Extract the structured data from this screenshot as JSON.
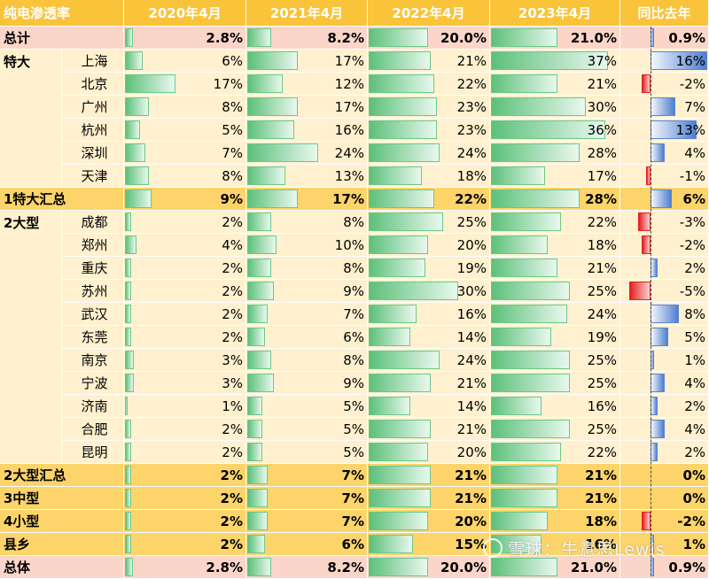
{
  "chart_data": {
    "type": "table",
    "title": "纯电渗透率",
    "columns": [
      "2020年4月",
      "2021年4月",
      "2022年4月",
      "2023年4月",
      "同比去年"
    ],
    "rows": [
      {
        "group": "总计",
        "city": "",
        "style": "total",
        "values": [
          2.8,
          8.2,
          20.0,
          21.0,
          0.9
        ],
        "labels": [
          "2.8%",
          "8.2%",
          "20.0%",
          "21.0%",
          "0.9%"
        ]
      },
      {
        "group": "特大",
        "city": "上海",
        "style": "city",
        "values": [
          6,
          17,
          21,
          37,
          16
        ],
        "labels": [
          "6%",
          "17%",
          "21%",
          "37%",
          "16%"
        ]
      },
      {
        "group": "",
        "city": "北京",
        "style": "city",
        "values": [
          17,
          12,
          22,
          21,
          -2
        ],
        "labels": [
          "17%",
          "12%",
          "22%",
          "21%",
          "-2%"
        ]
      },
      {
        "group": "",
        "city": "广州",
        "style": "city",
        "values": [
          8,
          17,
          23,
          30,
          7
        ],
        "labels": [
          "8%",
          "17%",
          "23%",
          "30%",
          "7%"
        ]
      },
      {
        "group": "",
        "city": "杭州",
        "style": "city",
        "values": [
          5,
          16,
          23,
          36,
          13
        ],
        "labels": [
          "5%",
          "16%",
          "23%",
          "36%",
          "13%"
        ]
      },
      {
        "group": "",
        "city": "深圳",
        "style": "city",
        "values": [
          7,
          24,
          24,
          28,
          4
        ],
        "labels": [
          "7%",
          "24%",
          "24%",
          "28%",
          "4%"
        ]
      },
      {
        "group": "",
        "city": "天津",
        "style": "city",
        "values": [
          8,
          13,
          18,
          17,
          -1
        ],
        "labels": [
          "8%",
          "13%",
          "18%",
          "17%",
          "-1%"
        ]
      },
      {
        "group": "1特大汇总",
        "city": "",
        "style": "summary",
        "values": [
          9,
          17,
          22,
          28,
          6
        ],
        "labels": [
          "9%",
          "17%",
          "22%",
          "28%",
          "6%"
        ]
      },
      {
        "group": "2大型",
        "city": "成都",
        "style": "city",
        "values": [
          2,
          8,
          25,
          22,
          -3
        ],
        "labels": [
          "2%",
          "8%",
          "25%",
          "22%",
          "-3%"
        ]
      },
      {
        "group": "",
        "city": "郑州",
        "style": "city",
        "values": [
          4,
          10,
          20,
          18,
          -2
        ],
        "labels": [
          "4%",
          "10%",
          "20%",
          "18%",
          "-2%"
        ]
      },
      {
        "group": "",
        "city": "重庆",
        "style": "city",
        "values": [
          2,
          8,
          19,
          21,
          2
        ],
        "labels": [
          "2%",
          "8%",
          "19%",
          "21%",
          "2%"
        ]
      },
      {
        "group": "",
        "city": "苏州",
        "style": "city",
        "values": [
          2,
          9,
          30,
          25,
          -5
        ],
        "labels": [
          "2%",
          "9%",
          "30%",
          "25%",
          "-5%"
        ]
      },
      {
        "group": "",
        "city": "武汉",
        "style": "city",
        "values": [
          2,
          7,
          16,
          24,
          8
        ],
        "labels": [
          "2%",
          "7%",
          "16%",
          "24%",
          "8%"
        ]
      },
      {
        "group": "",
        "city": "东莞",
        "style": "city",
        "values": [
          2,
          6,
          14,
          19,
          5
        ],
        "labels": [
          "2%",
          "6%",
          "14%",
          "19%",
          "5%"
        ]
      },
      {
        "group": "",
        "city": "南京",
        "style": "city",
        "values": [
          3,
          8,
          24,
          25,
          1
        ],
        "labels": [
          "3%",
          "8%",
          "24%",
          "25%",
          "1%"
        ]
      },
      {
        "group": "",
        "city": "宁波",
        "style": "city",
        "values": [
          3,
          9,
          21,
          25,
          4
        ],
        "labels": [
          "3%",
          "9%",
          "21%",
          "25%",
          "4%"
        ]
      },
      {
        "group": "",
        "city": "济南",
        "style": "city",
        "values": [
          1,
          5,
          14,
          16,
          2
        ],
        "labels": [
          "1%",
          "5%",
          "14%",
          "16%",
          "2%"
        ]
      },
      {
        "group": "",
        "city": "合肥",
        "style": "city",
        "values": [
          2,
          5,
          21,
          25,
          4
        ],
        "labels": [
          "2%",
          "5%",
          "21%",
          "25%",
          "4%"
        ]
      },
      {
        "group": "",
        "city": "昆明",
        "style": "city",
        "values": [
          2,
          5,
          20,
          22,
          2
        ],
        "labels": [
          "2%",
          "5%",
          "20%",
          "22%",
          "2%"
        ]
      },
      {
        "group": "2大型汇总",
        "city": "",
        "style": "summary",
        "values": [
          2,
          7,
          21,
          21,
          0
        ],
        "labels": [
          "2%",
          "7%",
          "21%",
          "21%",
          "0%"
        ]
      },
      {
        "group": "3中型",
        "city": "",
        "style": "summary",
        "values": [
          2,
          7,
          21,
          21,
          0
        ],
        "labels": [
          "2%",
          "7%",
          "21%",
          "21%",
          "0%"
        ]
      },
      {
        "group": "4小型",
        "city": "",
        "style": "summary",
        "values": [
          2,
          7,
          20,
          18,
          -2
        ],
        "labels": [
          "2%",
          "7%",
          "20%",
          "18%",
          "-2%"
        ]
      },
      {
        "group": "县乡",
        "city": "",
        "style": "summary",
        "values": [
          2,
          6,
          15,
          16,
          1
        ],
        "labels": [
          "2%",
          "6%",
          "15%",
          "16%",
          "1%"
        ]
      },
      {
        "group": "总体",
        "city": "",
        "style": "total",
        "values": [
          2.8,
          8.2,
          20.0,
          21.0,
          0.9
        ],
        "labels": [
          "2.8%",
          "8.2%",
          "20.0%",
          "21.0%",
          "0.9%"
        ]
      }
    ],
    "bar_scale_max": 40,
    "diff_scale_min": -5,
    "diff_scale_max": 16
  },
  "watermark": "雪球：牛意思Lewis",
  "colors": {
    "header": "#f9c33a",
    "total": "#fbd6c8",
    "summary": "#fcd46a",
    "city": "#fff1cf",
    "bar_green": "#5cc07a",
    "bar_blue": "#4f7fcf",
    "bar_red": "#e62020"
  }
}
